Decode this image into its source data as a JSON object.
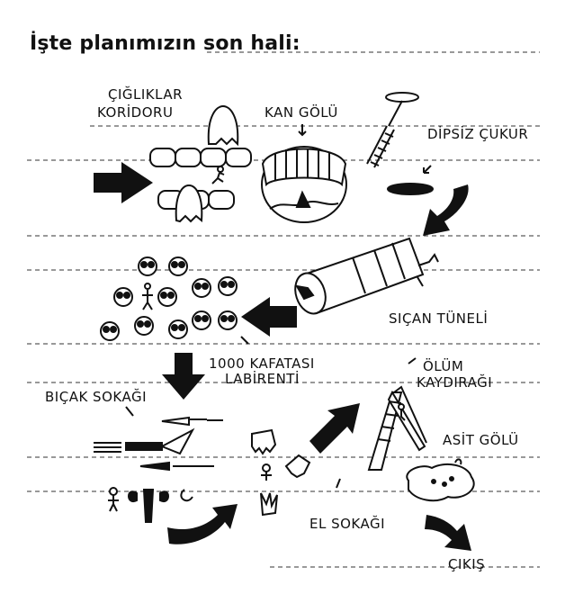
{
  "title": "İşte planımızın son hali:",
  "labels": {
    "scream_corridor_line1": "ÇIĞLIKLAR",
    "scream_corridor_line2": "KORİDORU",
    "blood_lake": "KAN GÖLÜ",
    "bottomless_pit": "DİPSİZ ÇUKUR",
    "rat_tunnel": "SIÇAN TÜNELİ",
    "skull_maze_line1": "1000 KAFATASI",
    "skull_maze_line2": "LABİRENTİ",
    "knife_alley": "BIÇAK SOKAĞI",
    "death_slide_line1": "ÖLÜM",
    "death_slide_line2": "KAYDIRAĞI",
    "acid_lake": "ASİT GÖLÜ",
    "hand_alley": "EL SOKAĞI",
    "exit": "ÇIKIŞ"
  },
  "colors": {
    "ink": "#111111",
    "paper": "#ffffff"
  }
}
